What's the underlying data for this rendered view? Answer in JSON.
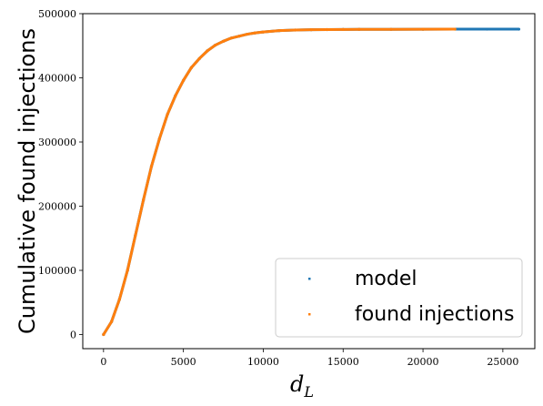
{
  "chart_data": {
    "type": "scatter",
    "xlabel": "d_L",
    "xlabel_main": "d",
    "xlabel_sub": "L",
    "ylabel": "Cumulative found injections",
    "xlim": [
      -1300,
      27000
    ],
    "ylim": [
      -22000,
      500000
    ],
    "xticks": [
      0,
      5000,
      10000,
      15000,
      20000,
      25000
    ],
    "yticks": [
      0,
      100000,
      200000,
      300000,
      400000,
      500000
    ],
    "legend": {
      "position": "lower-right",
      "entries": [
        "model",
        "found injections"
      ]
    },
    "grid": false,
    "series": [
      {
        "name": "model",
        "color": "#1f77b4",
        "x": [
          0,
          500,
          1000,
          1500,
          2000,
          2500,
          3000,
          3500,
          4000,
          4500,
          5000,
          5500,
          6000,
          6500,
          7000,
          7500,
          8000,
          8500,
          9000,
          9500,
          10000,
          11000,
          12000,
          13000,
          14000,
          15000,
          16000,
          18000,
          20000,
          22000,
          24000,
          26000
        ],
        "values": [
          0,
          20000,
          55000,
          100000,
          155000,
          210000,
          262000,
          305000,
          343000,
          372000,
          396000,
          416000,
          430000,
          442000,
          451000,
          457000,
          462000,
          465000,
          468000,
          470000,
          471500,
          473500,
          474500,
          475000,
          475200,
          475400,
          475500,
          475600,
          475700,
          475800,
          475800,
          475800
        ]
      },
      {
        "name": "found injections",
        "color": "#ff7f0e",
        "x": [
          0,
          500,
          1000,
          1500,
          2000,
          2500,
          3000,
          3500,
          4000,
          4500,
          5000,
          5500,
          6000,
          6500,
          7000,
          7500,
          8000,
          8500,
          9000,
          9500,
          10000,
          11000,
          12000,
          13000,
          14000,
          15000,
          16000,
          18000,
          20000,
          22000
        ],
        "values": [
          0,
          20000,
          55000,
          100000,
          155000,
          210000,
          262000,
          305000,
          343000,
          372000,
          396000,
          416000,
          430000,
          442000,
          451000,
          457000,
          462000,
          465000,
          468000,
          470000,
          471500,
          473500,
          474500,
          475000,
          475200,
          475400,
          475500,
          475600,
          475700,
          475800
        ]
      }
    ]
  }
}
